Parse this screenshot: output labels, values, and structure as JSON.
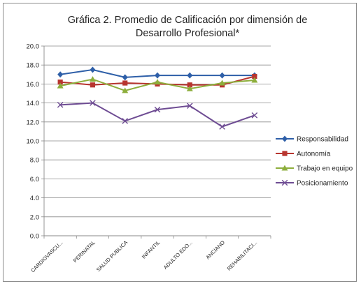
{
  "chart_data": {
    "type": "line",
    "title_line1": "Gráfica 2. Promedio de Calificación por dimensión de",
    "title_line2": "Desarrollo Profesional*",
    "xlabel": "",
    "ylabel": "",
    "ylim": [
      0,
      20
    ],
    "ytick_step": 2,
    "ytick_labels": [
      "0.0",
      "2.0",
      "4.0",
      "6.0",
      "8.0",
      "10.0",
      "12.0",
      "14.0",
      "16.0",
      "18.0",
      "20.0"
    ],
    "grid": true,
    "legend_position": "right",
    "categories": [
      "CARDIOVASCU...",
      "PERINATAL",
      "SALUD PUBLICA",
      "INFANTIL",
      "ADULTO EDO...",
      "ANCIANO",
      "REHABILITACI..."
    ],
    "series": [
      {
        "name": "Responsabilidad",
        "color": "#2e5fa8",
        "marker": "diamond",
        "values": [
          17.0,
          17.5,
          16.7,
          16.9,
          16.9,
          16.9,
          16.9
        ]
      },
      {
        "name": "Autonomía",
        "color": "#b8352f",
        "marker": "square",
        "values": [
          16.2,
          15.9,
          16.1,
          16.0,
          15.9,
          15.9,
          16.8
        ]
      },
      {
        "name": "Trabajo en equipo",
        "color": "#8dae3c",
        "marker": "triangle",
        "values": [
          15.8,
          16.5,
          15.3,
          16.2,
          15.5,
          16.1,
          16.4
        ]
      },
      {
        "name": "Posicionamiento",
        "color": "#6e4c93",
        "marker": "x",
        "values": [
          13.8,
          14.0,
          12.1,
          13.3,
          13.7,
          11.5,
          12.7
        ]
      }
    ]
  }
}
